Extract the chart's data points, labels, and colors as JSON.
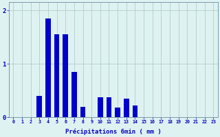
{
  "values": [
    0,
    0,
    0,
    0.4,
    1.85,
    1.55,
    1.55,
    0.85,
    0.2,
    0.0,
    0.38,
    0.38,
    0.18,
    0.35,
    0.22,
    0,
    0,
    0,
    0,
    0,
    0,
    0,
    0,
    0
  ],
  "xlabel": "Précipitations 6min ( mm )",
  "ylim": [
    0,
    2.15
  ],
  "yticks": [
    0,
    1,
    2
  ],
  "ytick_labels": [
    "0",
    "1",
    "2"
  ],
  "bar_color": "#0000cc",
  "bg_color": "#dff2f2",
  "grid_color": "#b0cccc",
  "axis_color": "#7799aa",
  "text_color": "#0000bb",
  "n_bars": 24,
  "bar_width": 0.6
}
